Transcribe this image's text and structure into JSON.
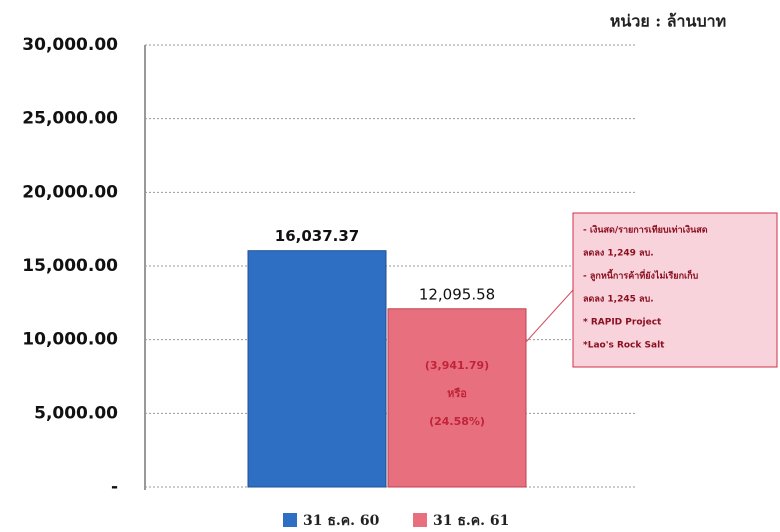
{
  "chart_data": {
    "type": "bar",
    "unit_label": "หน่วย : ล้านบาท",
    "categories": [
      null
    ],
    "series": [
      {
        "name": "31 ธ.ค. 60",
        "color": "#2e6fc4",
        "values": [
          16037.37
        ],
        "value_labels": [
          "16,037.37"
        ]
      },
      {
        "name": "31 ธ.ค. 61",
        "color": "#e8707e",
        "values": [
          12095.58
        ],
        "value_labels": [
          "12,095.58"
        ]
      }
    ],
    "ylim": [
      0,
      30000
    ],
    "yticks": [
      {
        "value": 0,
        "label": "-"
      },
      {
        "value": 5000,
        "label": "5,000.00"
      },
      {
        "value": 10000,
        "label": "10,000.00"
      },
      {
        "value": 15000,
        "label": "15,000.00"
      },
      {
        "value": 20000,
        "label": "20,000.00"
      },
      {
        "value": 25000,
        "label": "25,000.00"
      },
      {
        "value": 30000,
        "label": "30,000.00"
      }
    ],
    "grid": true,
    "legend": "bottom",
    "bar_annotation": [
      "(3,941.79)",
      "หรือ",
      "(24.58%)"
    ],
    "callout": [
      "- เงินสด/รายการเทียบเท่าเงินสด",
      "ลดลง 1,249 ลบ.",
      "- ลูกหนี้การค้าที่ยังไม่เรียกเก็บ",
      "ลดลง 1,245 ลบ.",
      "* RAPID Project",
      "*Lao's Rock Salt"
    ]
  }
}
